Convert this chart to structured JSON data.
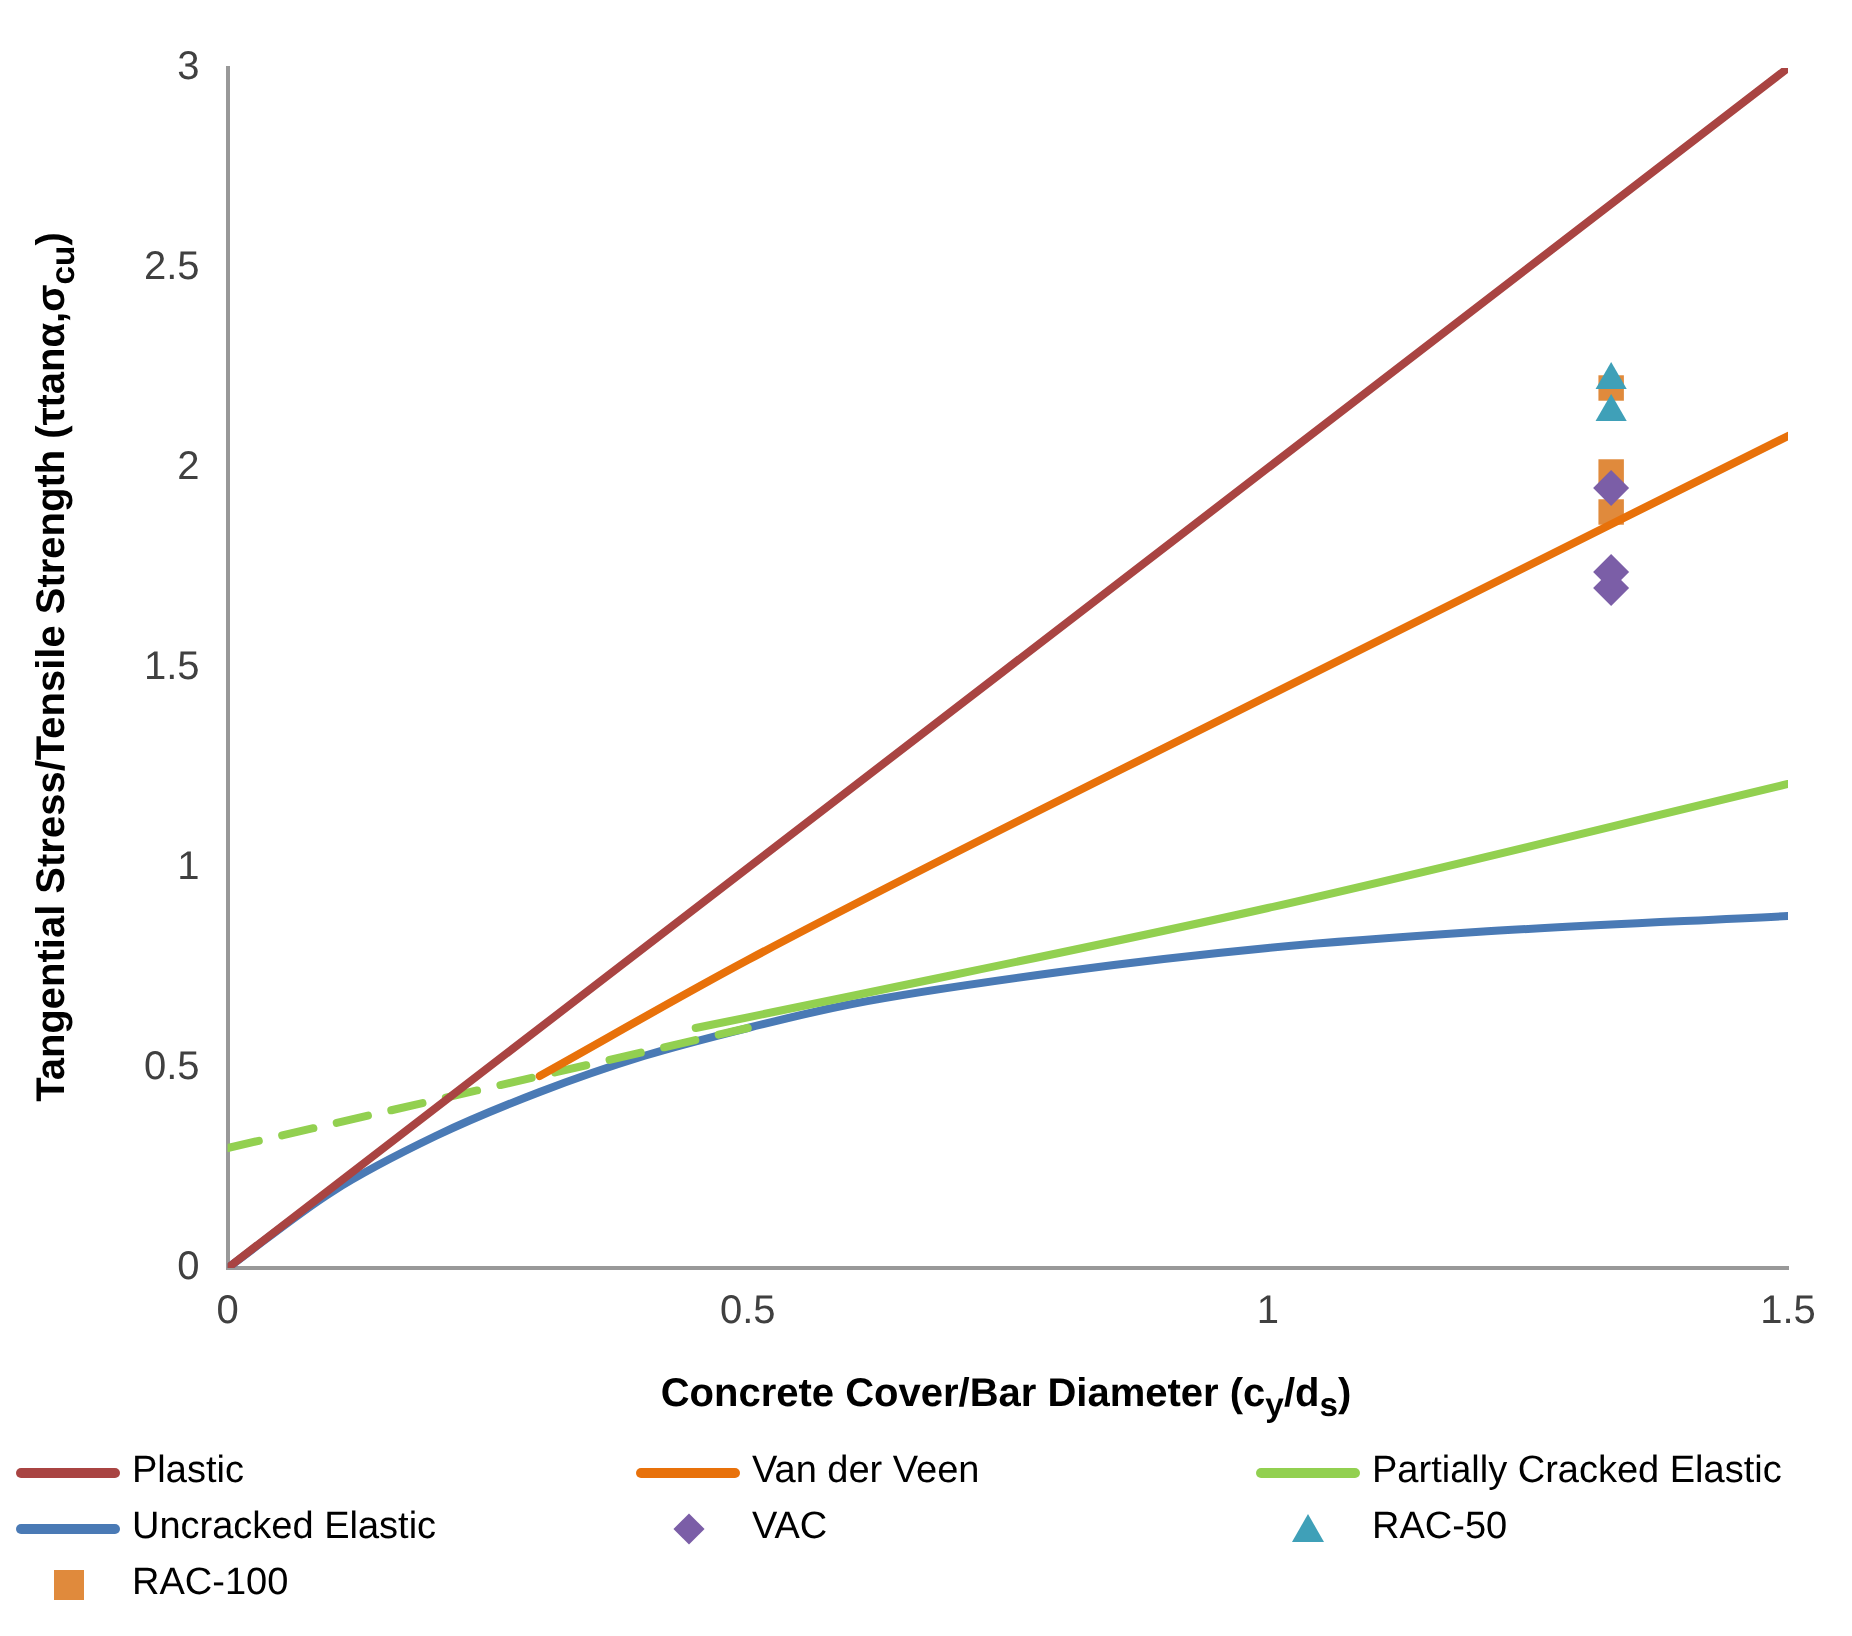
{
  "chart_data": {
    "type": "line",
    "xlabel": "Concrete Cover/Bar Diameter (c$_{y}$/d$_{s}$)",
    "ylabel": "Tangential Stress/Tensile Strength (τtanα,σ$_{cu}$)",
    "xlim": [
      0,
      1.5
    ],
    "xticks": [
      0,
      0.5,
      1,
      1.5
    ],
    "ylim": [
      0,
      3
    ],
    "yticks": [
      0,
      0.5,
      1,
      1.5,
      2,
      2.5,
      3
    ],
    "grid": false,
    "legend": "bottom",
    "series": [
      {
        "name": "Plastic",
        "type": "line",
        "color": "#a94442",
        "marker": "none",
        "line_style": "solid",
        "x": [
          0,
          1.5
        ],
        "values": [
          0,
          3
        ]
      },
      {
        "name": "Van der Veen",
        "type": "line",
        "color": "#e8710a",
        "marker": "none",
        "line_style": "solid",
        "x": [
          0.3,
          0.5,
          1.0,
          1.5
        ],
        "values": [
          0.48,
          0.77,
          1.43,
          2.08
        ]
      },
      {
        "name": "Partially Cracked Elastic",
        "type": "line",
        "color": "#92d050",
        "marker": "none",
        "line_style": "solid",
        "x": [
          0.45,
          0.6,
          1.0,
          1.5
        ],
        "values": [
          0.6,
          0.68,
          0.9,
          1.21
        ]
      },
      {
        "type": "line",
        "color": "#92d050",
        "marker": "none",
        "line_style": "dashed",
        "x": [
          0,
          0.5
        ],
        "values": [
          0.3,
          0.6
        ]
      },
      {
        "name": "Uncracked Elastic",
        "type": "line",
        "color": "#4a7ab5",
        "marker": "none",
        "line_style": "solid",
        "x": [
          0,
          0.1,
          0.2,
          0.3,
          0.4,
          0.5,
          0.6,
          0.8,
          1.0,
          1.2,
          1.5
        ],
        "values": [
          0,
          0.19,
          0.33,
          0.44,
          0.53,
          0.6,
          0.66,
          0.74,
          0.8,
          0.84,
          0.88
        ]
      },
      {
        "name": "VAC",
        "type": "scatter",
        "color": "#7b5ea7",
        "marker": "diamond",
        "x": [
          1.33,
          1.33,
          1.33
        ],
        "values": [
          1.7,
          1.74,
          1.95
        ]
      },
      {
        "name": "RAC-50",
        "type": "scatter",
        "color": "#3fa0b8",
        "marker": "triangle",
        "x": [
          1.33,
          1.33
        ],
        "values": [
          2.22,
          2.14
        ]
      },
      {
        "name": "RAC-100",
        "type": "scatter",
        "color": "#e08a3c",
        "marker": "square",
        "x": [
          1.33,
          1.33,
          1.33
        ],
        "values": [
          2.2,
          1.99,
          1.89
        ]
      }
    ]
  }
}
